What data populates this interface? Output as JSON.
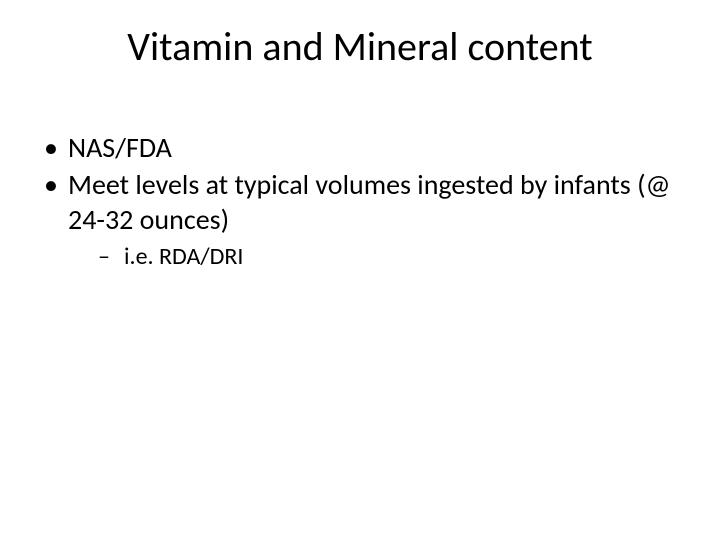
{
  "slide": {
    "title": "Vitamin and Mineral content",
    "bullets": [
      {
        "text": "NAS/FDA"
      },
      {
        "text": "Meet levels at typical volumes ingested by infants (@ 24-32 ounces)",
        "sub": [
          {
            "text": "i.e. RDA/DRI"
          }
        ]
      }
    ]
  },
  "style": {
    "background_color": "#ffffff",
    "text_color": "#000000",
    "title_fontsize": 40,
    "body_fontsize": 28,
    "sub_fontsize": 24,
    "font_family": "Calibri"
  }
}
